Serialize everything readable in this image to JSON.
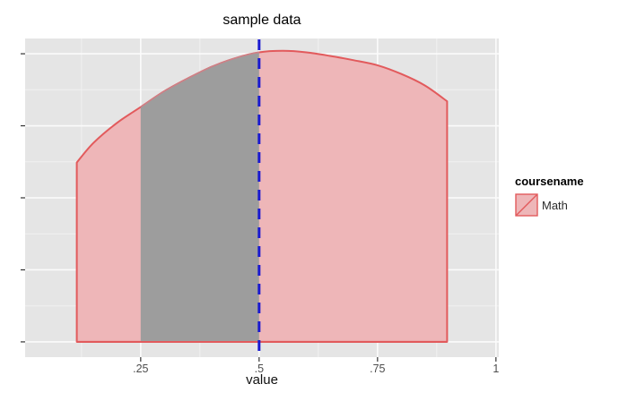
{
  "chart_data": {
    "type": "area",
    "subtype": "kernel-density",
    "title": "sample data",
    "xlabel": "value",
    "ylabel": "",
    "panel_bg": "#E5E5E5",
    "grid_major_color": "#FBFBFB",
    "grid_minor_color": "#F1F1F1",
    "tick_color": "#333333",
    "tick_label_color": "#4D4D4D",
    "axes": {
      "xlim": [
        0.006,
        1.006
      ],
      "ylim": [
        -0.106,
        2.106
      ],
      "grid": true,
      "x_major_ticks": [
        {
          "value": 0.25,
          "label": ".25"
        },
        {
          "value": 0.5,
          "label": ".5"
        },
        {
          "value": 0.75,
          "label": ".75"
        },
        {
          "value": 1,
          "label": "1"
        }
      ],
      "x_minor": [
        0.125,
        0.375,
        0.625,
        0.875
      ],
      "y_major_ticks": [
        0,
        0.5,
        1,
        1.5,
        2
      ],
      "y_minor": [
        0.25,
        0.75,
        1.25,
        1.75
      ],
      "y_labels_shown": false
    },
    "series": [
      {
        "name": "Math",
        "fill": "#EEB6B8",
        "stroke": "#E25A5C",
        "stroke_over_shade": "#CB8288",
        "points": [
          [
            0.115,
            1.245
          ],
          [
            0.15,
            1.38
          ],
          [
            0.2,
            1.52
          ],
          [
            0.25,
            1.63
          ],
          [
            0.3,
            1.74
          ],
          [
            0.35,
            1.83
          ],
          [
            0.4,
            1.91
          ],
          [
            0.45,
            1.97
          ],
          [
            0.5,
            2.01
          ],
          [
            0.55,
            2.02
          ],
          [
            0.6,
            2.01
          ],
          [
            0.65,
            1.985
          ],
          [
            0.7,
            1.955
          ],
          [
            0.75,
            1.92
          ],
          [
            0.8,
            1.86
          ],
          [
            0.85,
            1.78
          ],
          [
            0.897,
            1.67
          ]
        ]
      }
    ],
    "shaded_region": {
      "from": 0.25,
      "to": 0.5,
      "fill": "#9D9D9D"
    },
    "vline": {
      "x": 0.5,
      "color": "#1A1AD0",
      "style": "dashed",
      "width": 3
    },
    "legend": {
      "title": "coursename",
      "entries": [
        {
          "label": "Math",
          "fill": "#EEB6B8",
          "stroke": "#E25A5C",
          "key_glyph": "diagonal-line"
        }
      ]
    }
  }
}
